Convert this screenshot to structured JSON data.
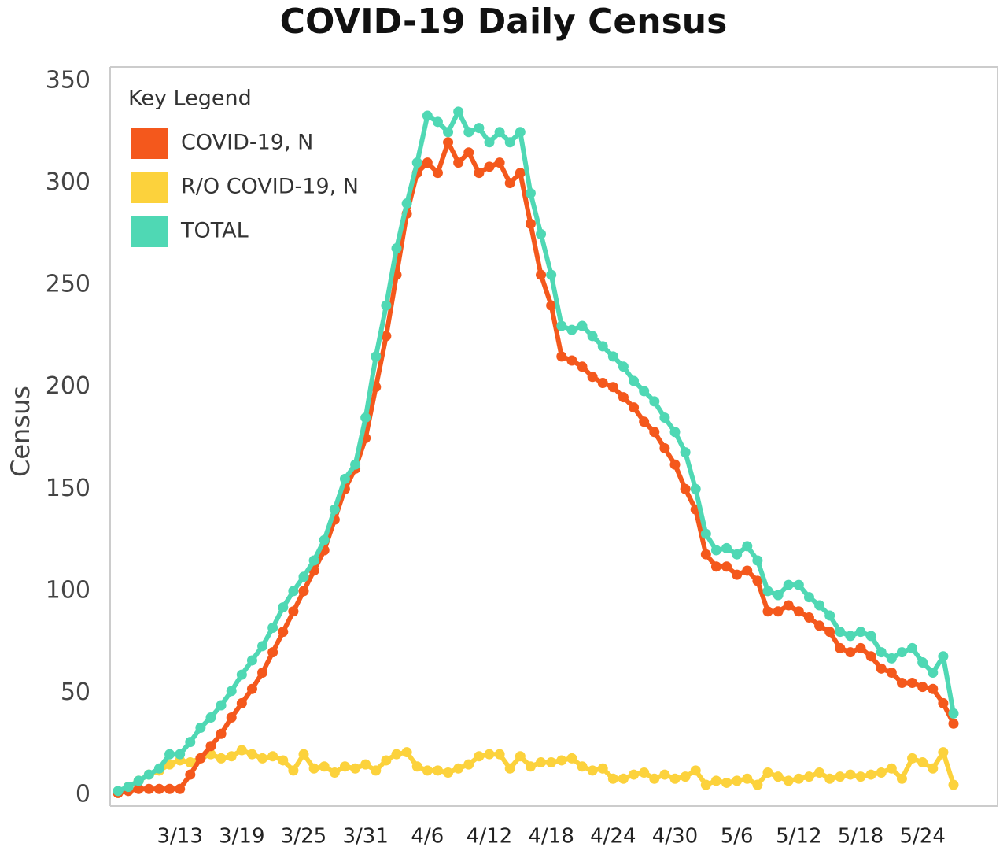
{
  "chart_data": {
    "type": "line",
    "title": "COVID-19 Daily Census",
    "y_label": "Census",
    "legend_title": "Key Legend",
    "legend": "upper-left",
    "grid": false,
    "categories": [
      null,
      null,
      null,
      null,
      null,
      null,
      "3/13",
      null,
      null,
      null,
      null,
      null,
      "3/19",
      null,
      null,
      null,
      null,
      null,
      "3/25",
      null,
      null,
      null,
      null,
      null,
      "3/31",
      null,
      null,
      null,
      null,
      null,
      "4/6",
      null,
      null,
      null,
      null,
      null,
      "4/12",
      null,
      null,
      null,
      null,
      null,
      "4/18",
      null,
      null,
      null,
      null,
      null,
      "4/24",
      null,
      null,
      null,
      null,
      null,
      "4/30",
      null,
      null,
      null,
      null,
      null,
      "5/6",
      null,
      null,
      null,
      null,
      null,
      "5/12",
      null,
      null,
      null,
      null,
      null,
      "5/18",
      null,
      null,
      null,
      null,
      null,
      "5/24",
      null,
      null,
      null
    ],
    "ylim": [
      0,
      350
    ],
    "yticks": [
      0,
      50,
      100,
      150,
      200,
      250,
      300,
      350
    ],
    "series": [
      {
        "name": "COVID-19, N",
        "color": "#f4581c",
        "values": [
          1,
          2,
          3,
          3,
          3,
          3,
          3,
          10,
          18,
          24,
          30,
          38,
          45,
          52,
          60,
          70,
          80,
          90,
          100,
          110,
          120,
          135,
          150,
          160,
          175,
          200,
          225,
          255,
          285,
          305,
          310,
          305,
          320,
          310,
          315,
          305,
          308,
          310,
          300,
          305,
          280,
          255,
          240,
          215,
          213,
          210,
          205,
          202,
          200,
          195,
          190,
          183,
          178,
          170,
          162,
          150,
          140,
          118,
          112,
          112,
          108,
          110,
          105,
          90,
          90,
          93,
          90,
          87,
          83,
          80,
          72,
          70,
          72,
          68,
          62,
          60,
          55,
          55,
          53,
          52,
          45,
          35
        ]
      },
      {
        "name": "R/O COVID-19, N",
        "color": "#fcd23c",
        "values": [
          1,
          4,
          7,
          10,
          12,
          15,
          17,
          16,
          18,
          20,
          18,
          19,
          22,
          20,
          18,
          19,
          17,
          12,
          20,
          13,
          14,
          11,
          14,
          13,
          15,
          12,
          17,
          20,
          21,
          14,
          12,
          12,
          11,
          13,
          15,
          19,
          20,
          20,
          13,
          19,
          14,
          16,
          16,
          17,
          18,
          14,
          12,
          13,
          8,
          8,
          10,
          11,
          8,
          10,
          8,
          9,
          12,
          5,
          7,
          6,
          7,
          8,
          5,
          11,
          9,
          7,
          8,
          9,
          11,
          8,
          9,
          10,
          9,
          10,
          11,
          13,
          8,
          18,
          16,
          13,
          21,
          5
        ]
      },
      {
        "name": "TOTAL",
        "color": "#4fd8b4",
        "values": [
          2,
          4,
          7,
          10,
          13,
          20,
          20,
          26,
          33,
          38,
          44,
          51,
          59,
          66,
          73,
          82,
          92,
          100,
          107,
          115,
          125,
          140,
          155,
          162,
          185,
          215,
          240,
          268,
          290,
          310,
          333,
          330,
          325,
          335,
          325,
          327,
          320,
          325,
          320,
          325,
          295,
          275,
          255,
          230,
          228,
          230,
          225,
          220,
          215,
          210,
          203,
          198,
          193,
          185,
          178,
          168,
          150,
          128,
          120,
          121,
          118,
          122,
          115,
          100,
          98,
          103,
          103,
          97,
          93,
          88,
          80,
          78,
          80,
          78,
          70,
          67,
          70,
          72,
          65,
          60,
          68,
          40
        ]
      }
    ]
  }
}
